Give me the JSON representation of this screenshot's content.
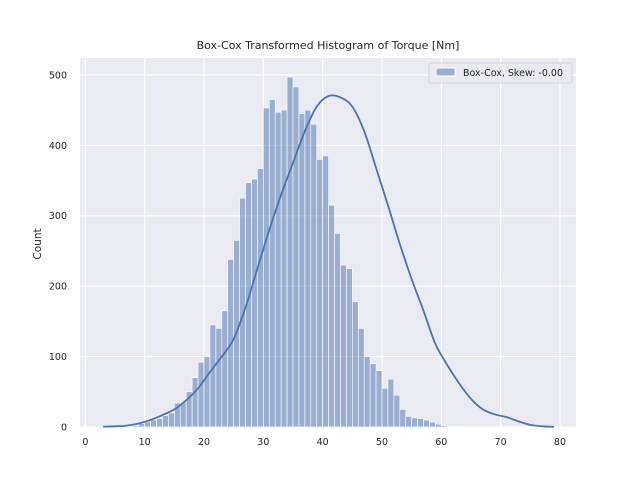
{
  "chart_data": {
    "type": "histogram",
    "title": "Box-Cox Transformed Histogram of Torque [Nm]",
    "xlabel": "",
    "ylabel": "Count",
    "xlim": [
      -0.9,
      82.7
    ],
    "ylim": [
      0,
      524
    ],
    "x_ticks": [
      0,
      10,
      20,
      30,
      40,
      50,
      60,
      70,
      80
    ],
    "y_ticks": [
      0,
      100,
      200,
      300,
      400,
      500
    ],
    "grid": true,
    "legend": {
      "position": "top-right",
      "entries": [
        "Box-Cox, Skew: -0.00"
      ]
    },
    "colors": {
      "background": "#eaeaf2",
      "bar_fill": "#4c72b0",
      "bar_opacity": 0.5,
      "kde_line": "#4c72b0",
      "grid": "#ffffff"
    },
    "bins": {
      "start": 3.0,
      "width": 1.0,
      "counts": [
        1,
        0,
        1,
        1,
        1,
        2,
        5,
        7,
        10,
        12,
        16,
        20,
        34,
        35,
        50,
        70,
        92,
        100,
        145,
        140,
        165,
        238,
        265,
        325,
        347,
        352,
        367,
        453,
        465,
        447,
        450,
        497,
        483,
        445,
        450,
        430,
        380,
        385,
        315,
        275,
        230,
        225,
        178,
        140,
        100,
        90,
        80,
        55,
        68,
        45,
        25,
        15,
        13,
        12,
        10,
        7,
        4,
        2,
        1,
        1
      ]
    },
    "series": [
      {
        "name": "Box-Cox, Skew: -0.00",
        "kde": {
          "x": [
            3,
            5,
            7,
            9,
            11,
            13,
            15,
            17,
            19,
            21,
            23,
            25,
            27,
            29,
            31,
            33,
            35,
            37,
            39,
            41,
            43,
            45,
            47,
            49,
            51,
            53,
            55,
            57,
            59,
            61,
            63,
            65,
            67,
            69,
            71,
            73,
            75,
            77,
            79
          ],
          "y": [
            0.5,
            1,
            2,
            5,
            10,
            17,
            25,
            38,
            55,
            78,
            100,
            125,
            170,
            225,
            280,
            330,
            375,
            420,
            455,
            470,
            468,
            455,
            420,
            368,
            315,
            260,
            210,
            165,
            118,
            88,
            62,
            40,
            25,
            18,
            14,
            8,
            3,
            1,
            0.3
          ]
        }
      }
    ]
  }
}
